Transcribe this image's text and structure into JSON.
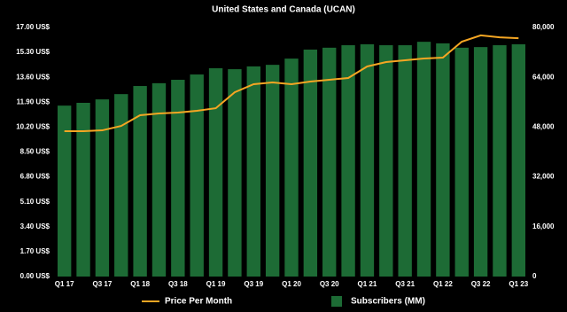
{
  "chart_data": {
    "type": "bar",
    "title": "United States and Canada (UCAN)",
    "categories": [
      "Q1 17",
      null,
      "Q3 17",
      null,
      "Q1 18",
      null,
      "Q3 18",
      null,
      "Q1 19",
      null,
      "Q3 19",
      null,
      "Q1 20",
      null,
      "Q3 20",
      null,
      "Q1 21",
      null,
      "Q3 21",
      null,
      "Q1 22",
      null,
      "Q3 22",
      null,
      "Q1 23"
    ],
    "series": [
      {
        "name": "Price Per Month",
        "type": "line",
        "axis": "y",
        "color": "#f5a623",
        "values": [
          9.92,
          9.92,
          9.98,
          10.28,
          11.01,
          11.13,
          11.19,
          11.31,
          11.49,
          12.58,
          13.13,
          13.25,
          13.13,
          13.31,
          13.43,
          13.55,
          14.34,
          14.64,
          14.76,
          14.88,
          14.94,
          16.03,
          16.46,
          16.33,
          16.27
        ]
      },
      {
        "name": "Subscribers (MM)",
        "type": "bar",
        "axis": "y2",
        "color": "#1d6b35",
        "values": [
          54900,
          55800,
          56900,
          58600,
          61200,
          62100,
          63200,
          64900,
          66900,
          66600,
          67500,
          68000,
          70000,
          72900,
          73500,
          74300,
          74600,
          74300,
          74300,
          75400,
          74900,
          73500,
          73700,
          74300,
          74600
        ]
      }
    ],
    "ylim": [
      0,
      17
    ],
    "yticks": [
      {
        "value": 0,
        "label": "0.00 US$"
      },
      {
        "value": 1.7,
        "label": "1.70 US$"
      },
      {
        "value": 3.4,
        "label": "3.40 US$"
      },
      {
        "value": 5.1,
        "label": "5.10 US$"
      },
      {
        "value": 6.8,
        "label": "6.80 US$"
      },
      {
        "value": 8.5,
        "label": "8.50 US$"
      },
      {
        "value": 10.2,
        "label": "10.20 US$"
      },
      {
        "value": 11.9,
        "label": "11.90 US$"
      },
      {
        "value": 13.6,
        "label": "13.60 US$"
      },
      {
        "value": 15.3,
        "label": "15.30 US$"
      },
      {
        "value": 17,
        "label": "17.00 US$"
      }
    ],
    "y2lim": [
      0,
      80000
    ],
    "y2ticks": [
      0,
      {
        "value": 16000,
        "label": "16,000"
      },
      {
        "value": 32000,
        "label": "32,000"
      },
      {
        "value": 48000,
        "label": "48,000"
      },
      {
        "value": 64000,
        "label": "64,000"
      },
      {
        "value": 80000,
        "label": "80,000"
      }
    ],
    "grid": false
  }
}
